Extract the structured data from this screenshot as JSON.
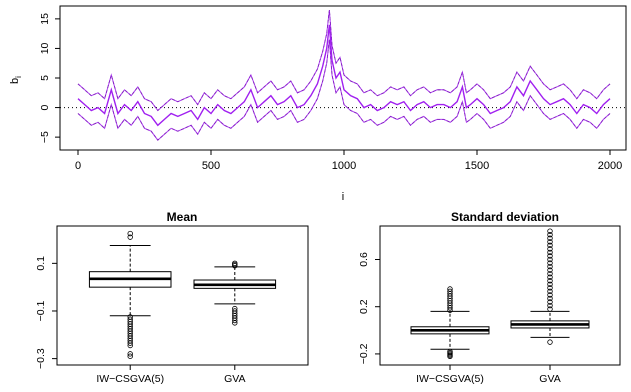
{
  "chart_data": [
    {
      "type": "line",
      "xlabel": "i",
      "ylabel": "b",
      "ylabel_subscript": "i",
      "xlim": [
        0,
        2000
      ],
      "ylim": [
        -6.5,
        16.5
      ],
      "xticks": [
        0,
        500,
        1000,
        1500,
        2000
      ],
      "yticks": [
        -5,
        0,
        5,
        10,
        15
      ],
      "reference_line": 0,
      "colors": {
        "series": "#a020f0",
        "band": "#000000",
        "reference": "#000000"
      },
      "grid": false,
      "series": [
        {
          "x": [
            0,
            25,
            50,
            75,
            100,
            125,
            150,
            175,
            200,
            225,
            250,
            275,
            300,
            325,
            350,
            375,
            400,
            425,
            450,
            475,
            500,
            525,
            550,
            575,
            600,
            625,
            650,
            675,
            700,
            725,
            750,
            775,
            800,
            825,
            850,
            875,
            900,
            920,
            935,
            945,
            955,
            970,
            985,
            1000,
            1025,
            1050,
            1075,
            1100,
            1125,
            1150,
            1175,
            1200,
            1225,
            1250,
            1275,
            1300,
            1325,
            1350,
            1375,
            1400,
            1425,
            1445,
            1460,
            1475,
            1500,
            1525,
            1550,
            1575,
            1600,
            1625,
            1650,
            1675,
            1700,
            1725,
            1750,
            1775,
            1800,
            1825,
            1850,
            1875,
            1900,
            1925,
            1950,
            1975,
            2000
          ],
          "y": [
            1.5,
            0.5,
            -0.5,
            0,
            -1,
            3,
            -1,
            0.5,
            -0.5,
            1,
            -1,
            -1.5,
            -3,
            -2,
            -1,
            -1.5,
            -1,
            -0.5,
            -2,
            0,
            -1,
            0.5,
            -0.5,
            -1,
            0,
            1,
            3,
            0,
            1,
            2,
            0.5,
            1,
            2,
            0,
            0.5,
            2,
            4,
            7,
            10,
            14,
            8,
            5,
            6,
            3,
            2,
            1.5,
            0,
            0.5,
            -0.5,
            0,
            1,
            0.5,
            1,
            -0.5,
            0.5,
            1,
            0,
            0.5,
            0.5,
            0,
            1,
            3.5,
            0,
            0.5,
            1.5,
            0.5,
            -1,
            -0.5,
            0,
            1,
            3.5,
            2,
            4.5,
            3,
            1.5,
            0.5,
            1,
            1.5,
            0.5,
            -1,
            0.5,
            0,
            -1,
            0.5,
            1.5
          ]
        }
      ]
    },
    {
      "type": "boxplot",
      "title": "Mean",
      "categories": [
        "IW−CSGVA(5)",
        "GVA"
      ],
      "ylim": [
        -0.31,
        0.24
      ],
      "yticks": [
        -0.3,
        -0.1,
        0.1
      ],
      "ytick_labels": [
        "−0.3",
        "−0.1",
        "0.1"
      ],
      "boxes": [
        {
          "name": "IW−CSGVA(5)",
          "whisker_low": -0.12,
          "q1": 0.0,
          "median": 0.035,
          "q3": 0.065,
          "whisker_high": 0.175,
          "outliers_high": [
            0.21,
            0.225
          ],
          "outliers_low": [
            -0.125,
            -0.135,
            -0.145,
            -0.155,
            -0.165,
            -0.175,
            -0.185,
            -0.195,
            -0.205,
            -0.215,
            -0.225,
            -0.235,
            -0.245,
            -0.28,
            -0.29
          ]
        },
        {
          "name": "GVA",
          "whisker_low": -0.07,
          "q1": -0.005,
          "median": 0.01,
          "q3": 0.03,
          "whisker_high": 0.085,
          "outliers_high": [
            0.09,
            0.095,
            0.1
          ],
          "outliers_low": [
            -0.09,
            -0.1,
            -0.11,
            -0.12,
            -0.13,
            -0.14,
            -0.15
          ]
        }
      ]
    },
    {
      "type": "boxplot",
      "title": "Standard deviation",
      "categories": [
        "IW−CSGVA(5)",
        "GVA"
      ],
      "ylim": [
        -0.26,
        0.85
      ],
      "yticks": [
        -0.2,
        0.2,
        0.6
      ],
      "ytick_labels": [
        "−0.2",
        "0.2",
        "0.6"
      ],
      "boxes": [
        {
          "name": "IW−CSGVA(5)",
          "whisker_low": -0.16,
          "q1": -0.03,
          "median": 0.0,
          "q3": 0.03,
          "whisker_high": 0.16,
          "outliers_high": [
            0.17,
            0.19,
            0.21,
            0.23,
            0.25,
            0.27,
            0.29,
            0.31,
            0.33,
            0.35
          ],
          "outliers_low": [
            -0.18,
            -0.19,
            -0.2,
            -0.21,
            -0.22
          ]
        },
        {
          "name": "GVA",
          "whisker_low": -0.06,
          "q1": 0.02,
          "median": 0.05,
          "q3": 0.08,
          "whisker_high": 0.16,
          "outliers_high": [
            0.18,
            0.21,
            0.24,
            0.27,
            0.3,
            0.33,
            0.36,
            0.39,
            0.42,
            0.45,
            0.48,
            0.51,
            0.54,
            0.57,
            0.6,
            0.63,
            0.66,
            0.69,
            0.72,
            0.75,
            0.78,
            0.81,
            0.84
          ],
          "outliers_low": [
            -0.1
          ]
        }
      ]
    }
  ]
}
